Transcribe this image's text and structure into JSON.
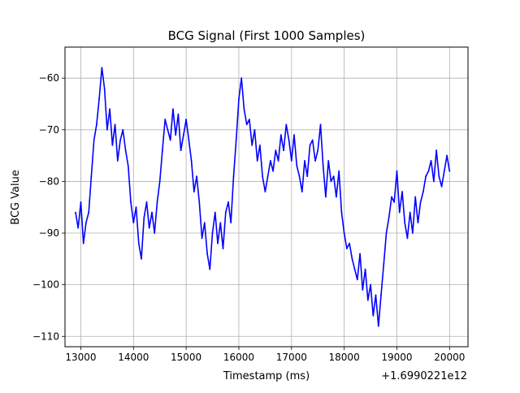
{
  "chart_data": {
    "type": "line",
    "title": "BCG Signal (First 1000 Samples)",
    "xlabel": "Timestamp (ms)",
    "ylabel": "BCG Value",
    "x_offset_label": "+1.6990221e12",
    "xlim": [
      12700,
      20350
    ],
    "ylim": [
      -112,
      -54
    ],
    "x_ticks": [
      13000,
      14000,
      15000,
      16000,
      17000,
      18000,
      19000,
      20000
    ],
    "x_tick_labels": [
      "13000",
      "14000",
      "15000",
      "16000",
      "17000",
      "18000",
      "19000",
      "20000"
    ],
    "y_ticks": [
      -110,
      -100,
      -90,
      -80,
      -70,
      -60
    ],
    "y_tick_labels": [
      "−110",
      "−100",
      "−90",
      "−80",
      "−70",
      "−60"
    ],
    "grid": true,
    "series": [
      {
        "color": "#0000ff",
        "x": [
          12900,
          12950,
          13000,
          13050,
          13100,
          13150,
          13200,
          13250,
          13300,
          13350,
          13400,
          13450,
          13500,
          13550,
          13600,
          13650,
          13700,
          13750,
          13800,
          13850,
          13900,
          13950,
          14000,
          14050,
          14100,
          14150,
          14200,
          14250,
          14300,
          14350,
          14400,
          14450,
          14500,
          14550,
          14600,
          14650,
          14700,
          14750,
          14800,
          14850,
          14900,
          14950,
          15000,
          15050,
          15100,
          15150,
          15200,
          15250,
          15300,
          15350,
          15400,
          15450,
          15500,
          15550,
          15600,
          15650,
          15700,
          15750,
          15800,
          15850,
          15900,
          15950,
          16000,
          16050,
          16100,
          16150,
          16200,
          16250,
          16300,
          16350,
          16400,
          16450,
          16500,
          16550,
          16600,
          16650,
          16700,
          16750,
          16800,
          16850,
          16900,
          16950,
          17000,
          17050,
          17100,
          17150,
          17200,
          17250,
          17300,
          17350,
          17400,
          17450,
          17500,
          17550,
          17600,
          17650,
          17700,
          17750,
          17800,
          17850,
          17900,
          17950,
          18000,
          18050,
          18100,
          18150,
          18200,
          18250,
          18300,
          18350,
          18400,
          18450,
          18500,
          18550,
          18600,
          18650,
          18700,
          18750,
          18800,
          18850,
          18900,
          18950,
          19000,
          19050,
          19100,
          19150,
          19200,
          19250,
          19300,
          19350,
          19400,
          19450,
          19500,
          19550,
          19600,
          19650,
          19700,
          19750,
          19800,
          19850,
          19900,
          19950,
          20000
        ],
        "y": [
          -86,
          -89,
          -84,
          -92,
          -88,
          -86,
          -79,
          -72,
          -69,
          -64,
          -58,
          -62,
          -70,
          -66,
          -73,
          -69,
          -76,
          -72,
          -70,
          -74,
          -77,
          -84,
          -88,
          -85,
          -92,
          -95,
          -87,
          -84,
          -89,
          -86,
          -90,
          -84,
          -80,
          -74,
          -68,
          -70,
          -72,
          -66,
          -71,
          -67,
          -74,
          -71,
          -68,
          -72,
          -76,
          -82,
          -79,
          -84,
          -91,
          -88,
          -94,
          -97,
          -90,
          -86,
          -92,
          -88,
          -93,
          -86,
          -84,
          -88,
          -79,
          -72,
          -64,
          -60,
          -66,
          -69,
          -68,
          -73,
          -70,
          -76,
          -73,
          -79,
          -82,
          -79,
          -76,
          -78,
          -74,
          -76,
          -71,
          -74,
          -69,
          -72,
          -76,
          -71,
          -77,
          -79,
          -82,
          -76,
          -79,
          -73,
          -72,
          -76,
          -74,
          -69,
          -77,
          -83,
          -76,
          -80,
          -79,
          -83,
          -78,
          -86,
          -90,
          -93,
          -92,
          -95,
          -97,
          -99,
          -94,
          -101,
          -97,
          -103,
          -100,
          -106,
          -102,
          -108,
          -102,
          -96,
          -90,
          -87,
          -83,
          -84,
          -78,
          -86,
          -82,
          -88,
          -91,
          -86,
          -90,
          -83,
          -88,
          -84,
          -82,
          -79,
          -78,
          -76,
          -80,
          -74,
          -79,
          -81,
          -78,
          -75,
          -78
        ]
      }
    ]
  }
}
